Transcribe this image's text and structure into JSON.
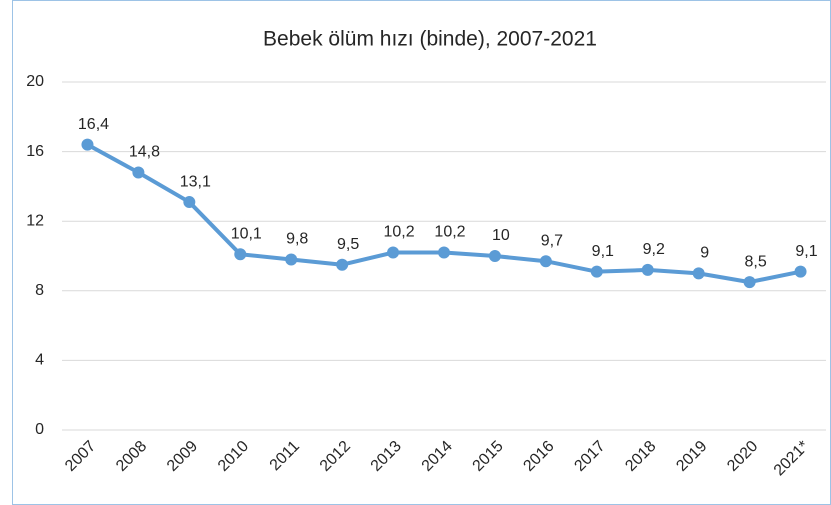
{
  "chart_data": {
    "type": "line",
    "title": "Bebek ölüm hızı (binde), 2007-2021",
    "categories": [
      "2007",
      "2008",
      "2009",
      "2010",
      "2011",
      "2012",
      "2013",
      "2014",
      "2015",
      "2016",
      "2017",
      "2018",
      "2019",
      "2020",
      "2021*"
    ],
    "series": [
      {
        "name": "Bebek ölüm hızı",
        "color": "#5b9bd5",
        "values": [
          16.4,
          14.8,
          13.1,
          10.1,
          9.8,
          9.5,
          10.2,
          10.2,
          10,
          9.7,
          9.1,
          9.2,
          9,
          8.5,
          9.1
        ],
        "value_labels": [
          "16,4",
          "14,8",
          "13,1",
          "10,1",
          "9,8",
          "9,5",
          "10,2",
          "10,2",
          "10",
          "9,7",
          "9,1",
          "9,2",
          "9",
          "8,5",
          "9,1"
        ]
      }
    ],
    "ylim": [
      0,
      20
    ],
    "yticks": [
      0,
      4,
      8,
      12,
      16,
      20
    ],
    "grid": true
  }
}
